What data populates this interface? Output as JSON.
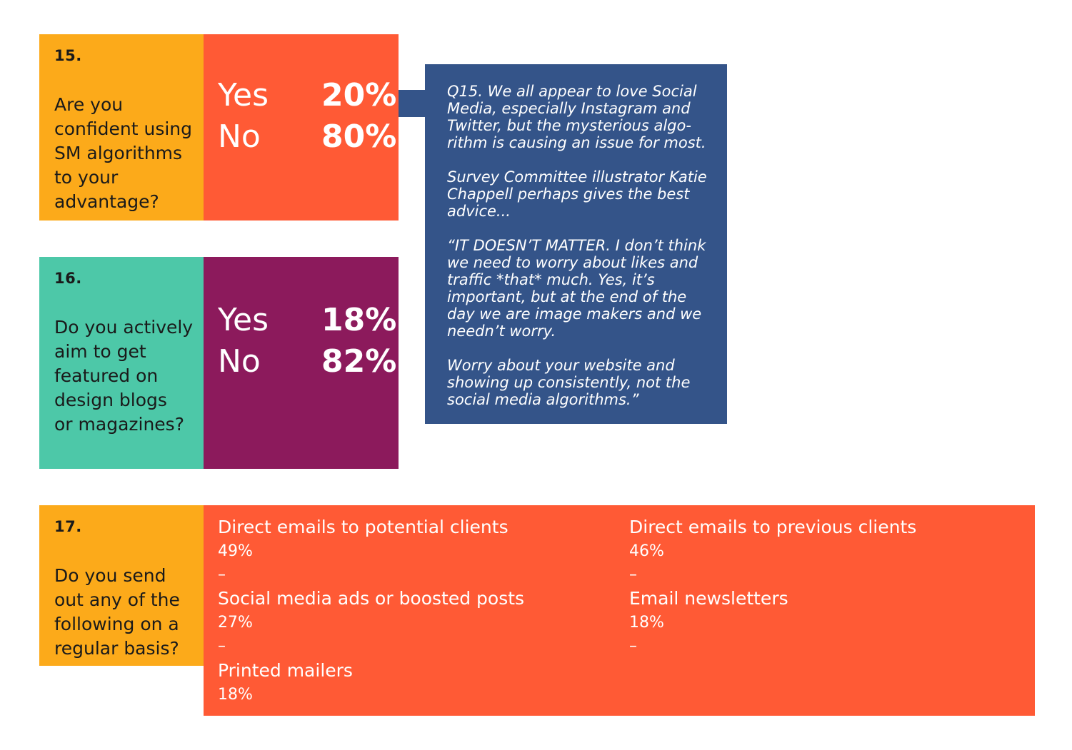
{
  "colors": {
    "amber": "#FCAA1A",
    "orange_red": "#FF5A35",
    "teal": "#4DC8A8",
    "plum": "#8C1A5C",
    "navy": "#345489"
  },
  "q15": {
    "number": "15.",
    "question_lines": [
      "Are you",
      "confident using",
      "SM algorithms",
      "to your",
      "advantage?"
    ],
    "answers": [
      {
        "label": "Yes",
        "value": "20%"
      },
      {
        "label": "No",
        "value": "80%"
      }
    ]
  },
  "q16": {
    "number": "16.",
    "question_lines": [
      "Do you actively",
      "aim to get",
      "featured on",
      "design blogs",
      "or magazines?"
    ],
    "answers": [
      {
        "label": "Yes",
        "value": "18%"
      },
      {
        "label": "No",
        "value": "82%"
      }
    ]
  },
  "quote": {
    "paragraphs": [
      "Q15. We all appear to love Social Media, especially Instagram and Twitter, but the mysterious algo-rithm is causing an issue for most.",
      "Survey Committee illustrator Katie Chappell perhaps gives the best advice...",
      "“IT DOESN’T MATTER. I don’t think we need to worry about likes and traffic *that* much. Yes, it’s important, but at the end of the day we are image makers and we needn’t worry.",
      "Worry about your website and showing up consistently, not the social media algorithms.”"
    ]
  },
  "q17": {
    "number": "17.",
    "question_lines": [
      "Do you send",
      "out any of the",
      "following on a",
      "regular basis?"
    ],
    "items": [
      {
        "label": "Direct emails to potential clients",
        "value": "49%",
        "sep": "–"
      },
      {
        "label": "Social media ads or boosted posts",
        "value": "27%",
        "sep": "–"
      },
      {
        "label": "Printed mailers",
        "value": "18%",
        "sep": ""
      },
      {
        "label": "Direct emails to previous clients",
        "value": "46%",
        "sep": "–"
      },
      {
        "label": "Email newsletters",
        "value": "18%",
        "sep": "–"
      }
    ]
  }
}
